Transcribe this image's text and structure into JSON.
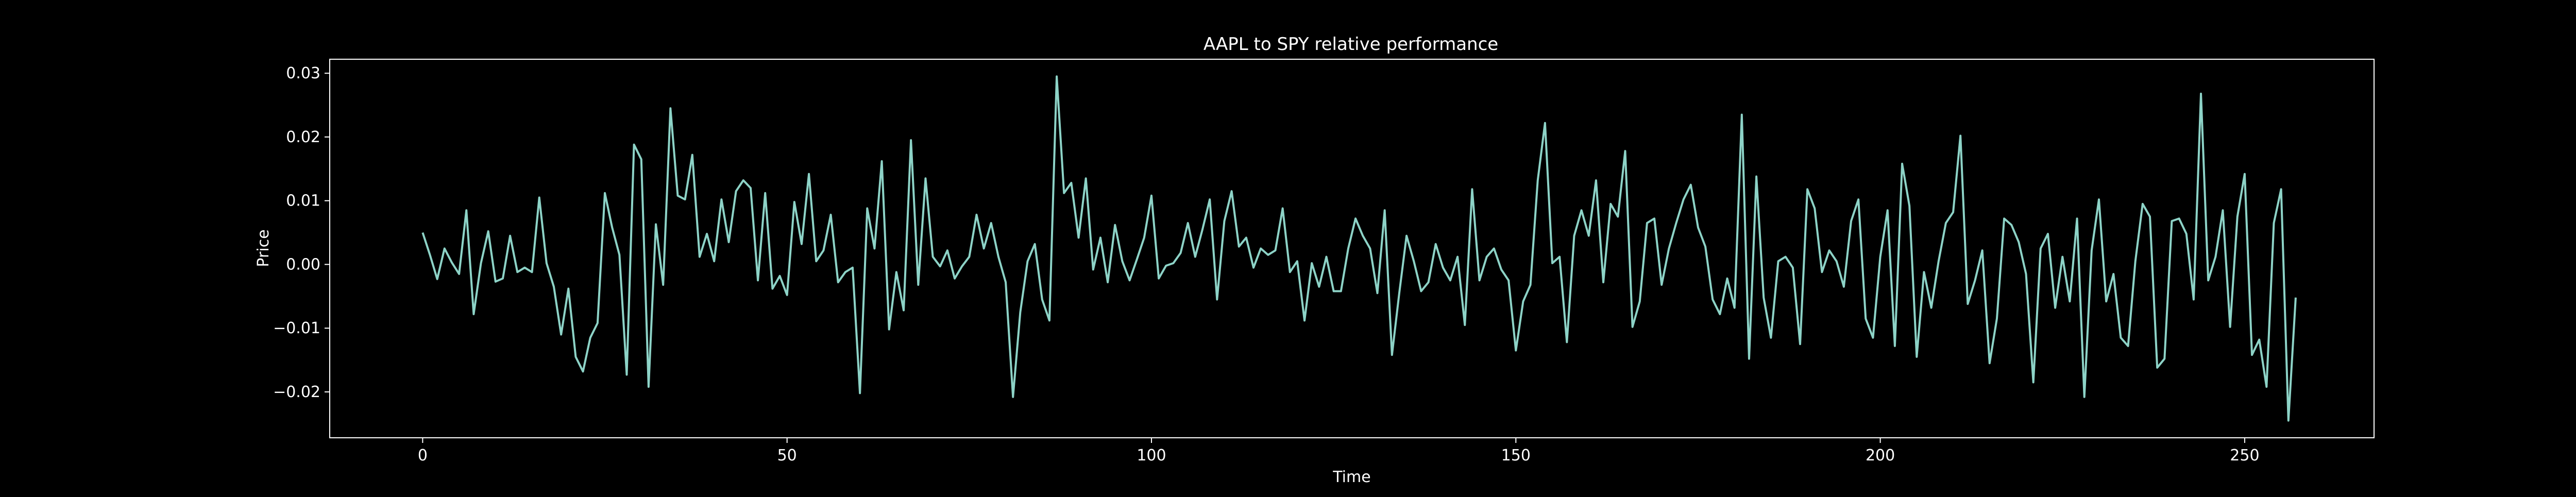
{
  "chart_data": {
    "type": "line",
    "title": "AAPL to SPY relative performance",
    "xlabel": "Time",
    "ylabel": "Price",
    "xlim": [
      -12.75,
      267.75
    ],
    "ylim": [
      -0.0272,
      0.0322
    ],
    "xticks": [
      0,
      50,
      100,
      150,
      200,
      250
    ],
    "yticks": [
      -0.02,
      -0.01,
      0.0,
      0.01,
      0.02,
      0.03
    ],
    "yticklabels": [
      "−0.02",
      "−0.01",
      "0.00",
      "0.01",
      "0.02",
      "0.03"
    ],
    "grid": false,
    "legend": "none",
    "colors": {
      "background": "#000000",
      "axes": "#ffffff",
      "line": "#8dd3c7"
    },
    "series": [
      {
        "values": [
          0.005,
          0.0015,
          -0.0023,
          0.0025,
          0.0003,
          -0.0015,
          0.0085,
          -0.0078,
          0.0002,
          0.0052,
          -0.0027,
          -0.0022,
          0.0045,
          -0.0012,
          -0.0005,
          -0.0012,
          0.0105,
          0.0002,
          -0.0035,
          -0.011,
          -0.0038,
          -0.0145,
          -0.0168,
          -0.0115,
          -0.0092,
          0.0112,
          0.0058,
          0.0015,
          -0.0173,
          0.0188,
          0.0165,
          -0.0192,
          0.0063,
          -0.0032,
          0.0245,
          0.0108,
          0.0102,
          0.0172,
          0.0012,
          0.0048,
          0.0005,
          0.0102,
          0.0035,
          0.0115,
          0.0132,
          0.012,
          -0.0025,
          0.0112,
          -0.0038,
          -0.0018,
          -0.0048,
          0.0098,
          0.0032,
          0.0142,
          0.0005,
          0.0022,
          0.0078,
          -0.0028,
          -0.0012,
          -0.0005,
          -0.0202,
          0.0088,
          0.0025,
          0.0162,
          -0.0102,
          -0.0012,
          -0.0072,
          0.0195,
          -0.0032,
          0.0135,
          0.0012,
          -0.0003,
          0.0022,
          -0.0022,
          -0.0003,
          0.0012,
          0.0078,
          0.0025,
          0.0065,
          0.0012,
          -0.0028,
          -0.0208,
          -0.0075,
          0.0005,
          0.0032,
          -0.0055,
          -0.0088,
          0.0295,
          0.0112,
          0.0128,
          0.0042,
          0.0135,
          -0.0008,
          0.0042,
          -0.0028,
          0.0062,
          0.0005,
          -0.0025,
          0.0008,
          0.0042,
          0.0108,
          -0.0022,
          -0.0002,
          0.0002,
          0.0018,
          0.0065,
          0.0012,
          0.0055,
          0.0102,
          -0.0055,
          0.0068,
          0.0115,
          0.0028,
          0.0042,
          -0.0005,
          0.0025,
          0.0015,
          0.0022,
          0.0088,
          -0.0012,
          0.0005,
          -0.0088,
          0.0002,
          -0.0035,
          0.0012,
          -0.0042,
          -0.0042,
          0.0025,
          0.0072,
          0.0045,
          0.0025,
          -0.0045,
          0.0085,
          -0.0142,
          -0.0045,
          0.0045,
          0.0005,
          -0.0042,
          -0.0028,
          0.0032,
          -0.0005,
          -0.0025,
          0.0012,
          -0.0095,
          0.0118,
          -0.0025,
          0.0012,
          0.0025,
          -0.0008,
          -0.0025,
          -0.0135,
          -0.0058,
          -0.0032,
          0.0132,
          0.0222,
          0.0002,
          0.0012,
          -0.0122,
          0.0045,
          0.0085,
          0.0045,
          0.0132,
          -0.0028,
          0.0095,
          0.0075,
          0.0178,
          -0.0098,
          -0.0058,
          0.0065,
          0.0072,
          -0.0032,
          0.0025,
          0.0065,
          0.0102,
          0.0125,
          0.0058,
          0.0028,
          -0.0055,
          -0.0078,
          -0.0022,
          -0.0068,
          0.0235,
          -0.0148,
          0.0138,
          -0.0052,
          -0.0115,
          0.0005,
          0.0012,
          -0.0005,
          -0.0125,
          0.0118,
          0.0088,
          -0.0012,
          0.0022,
          0.0005,
          -0.0035,
          0.0068,
          0.0102,
          -0.0085,
          -0.0115,
          0.0012,
          0.0085,
          -0.0128,
          0.0158,
          0.0092,
          -0.0145,
          -0.0012,
          -0.0068,
          0.0005,
          0.0065,
          0.0082,
          0.0202,
          -0.0062,
          -0.0025,
          0.0022,
          -0.0155,
          -0.0085,
          0.0072,
          0.0062,
          0.0035,
          -0.0015,
          -0.0185,
          0.0025,
          0.0048,
          -0.0068,
          0.0012,
          -0.0058,
          0.0072,
          -0.0208,
          0.0022,
          0.0102,
          -0.0058,
          -0.0015,
          -0.0115,
          -0.0128,
          0.0005,
          0.0095,
          0.0075,
          -0.0162,
          -0.0148,
          0.0068,
          0.0072,
          0.0048,
          -0.0055,
          0.0268,
          -0.0025,
          0.0012,
          0.0085,
          -0.0098,
          0.0075,
          0.0142,
          -0.0142,
          -0.0118,
          -0.0192,
          0.0065,
          0.0118,
          -0.0245,
          -0.0052
        ]
      }
    ]
  }
}
